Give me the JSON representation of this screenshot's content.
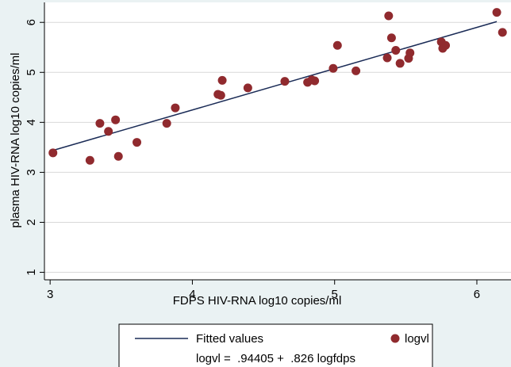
{
  "chart_data": {
    "type": "scatter",
    "xlabel": "FDPS HIV-RNA log10 copies/ml",
    "ylabel": "plasma HIV-RNA log10 copies/ml",
    "xlim": [
      2.96,
      6.24
    ],
    "ylim": [
      0.85,
      6.4
    ],
    "x_ticks": [
      "3",
      "4",
      "5",
      "6"
    ],
    "y_ticks": [
      "1",
      "2",
      "3",
      "4",
      "5",
      "6"
    ],
    "grid": "horizontal",
    "legend_position": "bottom",
    "colors": {
      "background": "#eaf2f3",
      "plot_area": "#ffffff",
      "points": "#902a2e",
      "fit_line": "#1a2b56"
    },
    "series": [
      {
        "name": "logvl",
        "kind": "scatter",
        "x": [
          3.02,
          3.28,
          3.35,
          3.41,
          3.46,
          3.48,
          3.61,
          3.82,
          3.88,
          4.18,
          4.2,
          4.21,
          4.39,
          4.65,
          4.81,
          4.84,
          4.86,
          4.99,
          5.02,
          5.15,
          5.37,
          5.38,
          5.4,
          5.43,
          5.46,
          5.52,
          5.53,
          5.75,
          5.76,
          5.78,
          6.14,
          6.18
        ],
        "y": [
          3.39,
          3.24,
          3.98,
          3.82,
          4.05,
          3.32,
          3.6,
          3.98,
          4.29,
          4.56,
          4.54,
          4.84,
          4.69,
          4.82,
          4.8,
          4.85,
          4.83,
          5.08,
          5.54,
          5.03,
          5.29,
          6.13,
          5.69,
          5.44,
          5.18,
          5.28,
          5.39,
          5.61,
          5.48,
          5.54,
          6.2,
          5.8
        ]
      },
      {
        "name": "Fitted values",
        "kind": "line",
        "intercept": 0.94405,
        "slope": 0.826,
        "x": [
          3.02,
          6.14
        ]
      }
    ],
    "legend": {
      "items": [
        "Fitted values",
        "logvl"
      ],
      "equation": "logvl =  .94405 +  .826 logfdps"
    }
  }
}
